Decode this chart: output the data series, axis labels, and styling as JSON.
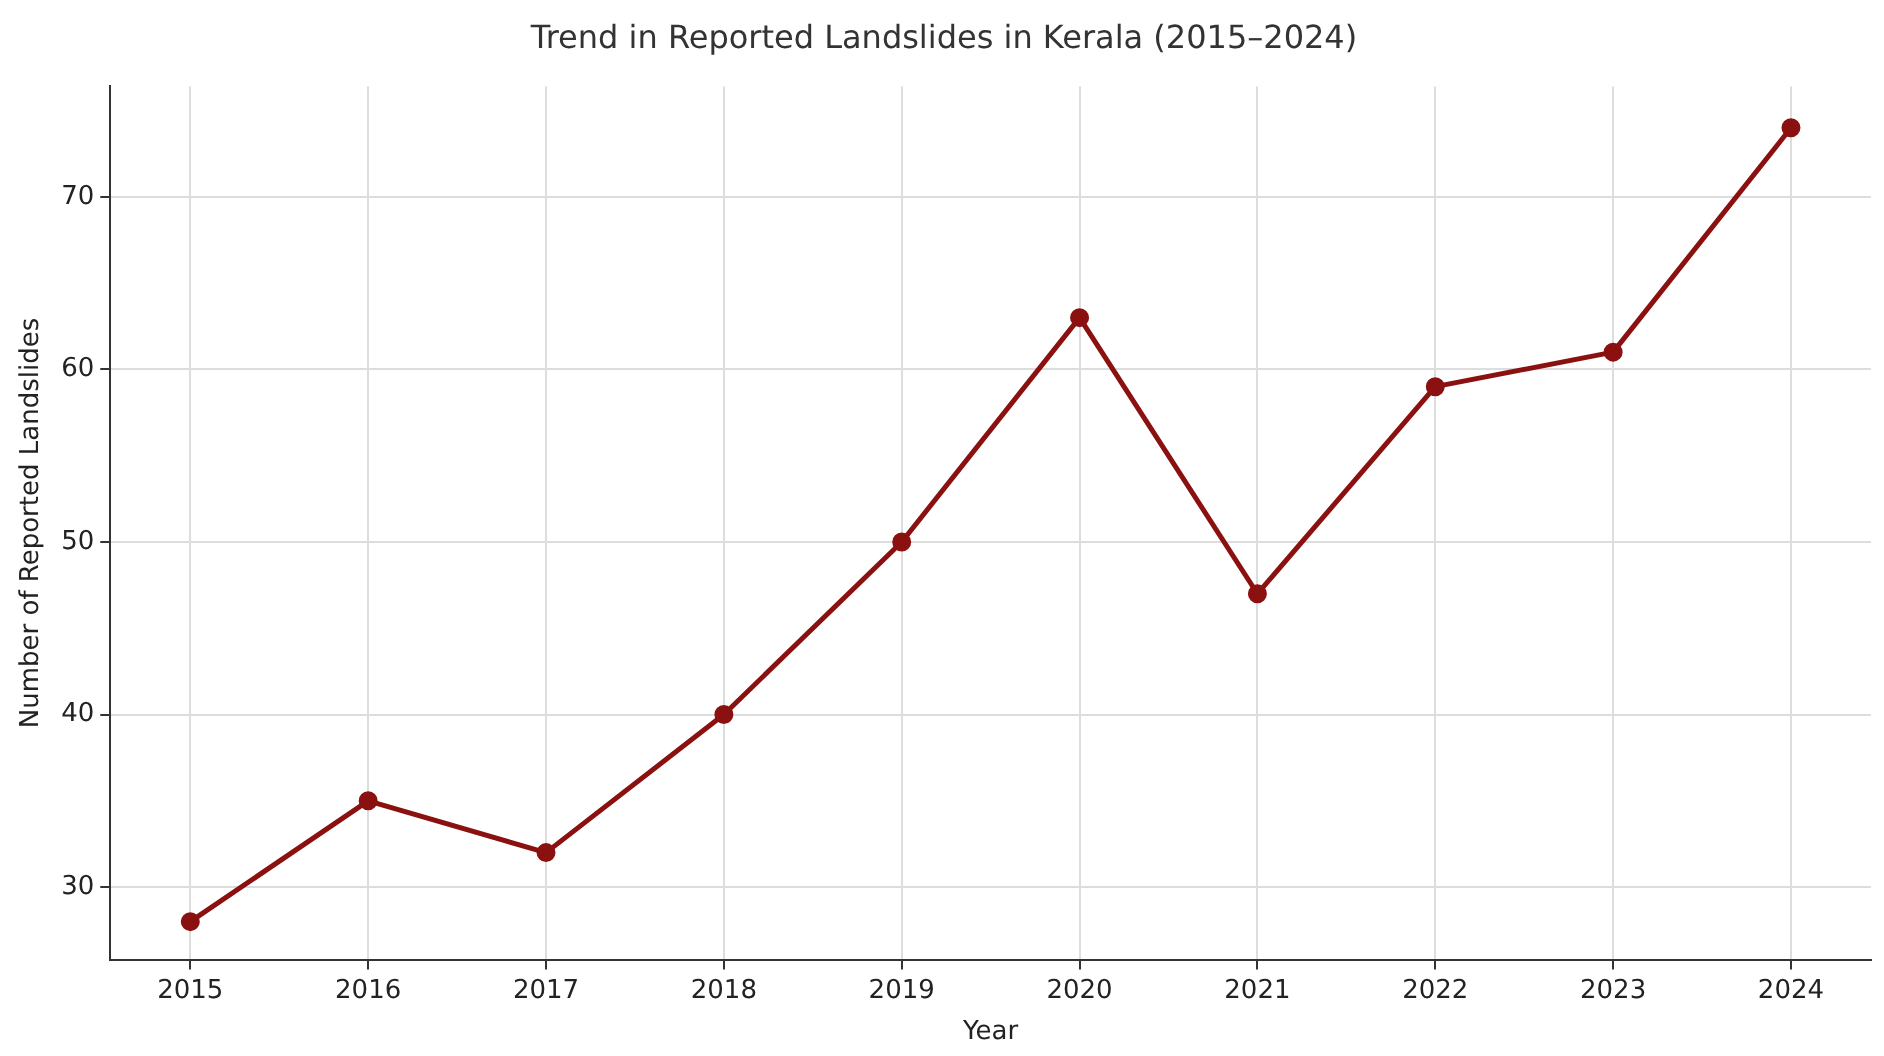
{
  "chart_data": {
    "type": "line",
    "title": "Trend in Reported Landslides in Kerala (2015–2024)",
    "xlabel": "Year",
    "ylabel": "Number of Reported Landslides",
    "x": [
      2015,
      2016,
      2017,
      2018,
      2019,
      2020,
      2021,
      2022,
      2023,
      2024
    ],
    "series": [
      {
        "color": "#8b1111",
        "values": [
          28,
          35,
          32,
          40,
          50,
          63,
          47,
          59,
          61,
          74
        ]
      }
    ],
    "xlim": [
      2014.55,
      2024.45
    ],
    "xticks": [
      2015,
      2016,
      2017,
      2018,
      2019,
      2020,
      2021,
      2022,
      2023,
      2024
    ],
    "ylim": [
      25.8,
      76.4
    ],
    "yticks": [
      30,
      40,
      50,
      60,
      70
    ],
    "grid": true,
    "marker": "circle",
    "line_style": "solid",
    "legend": false
  }
}
